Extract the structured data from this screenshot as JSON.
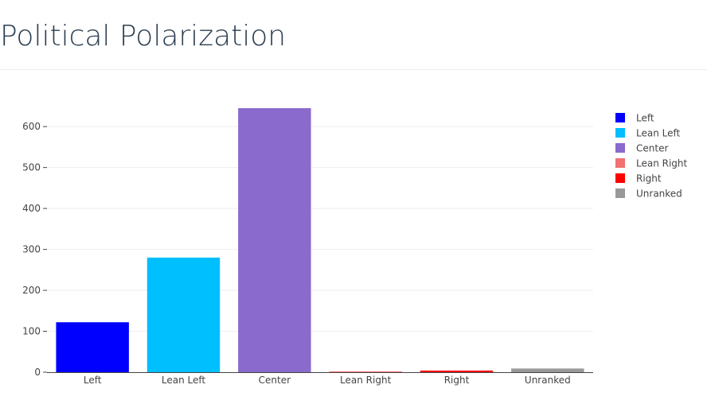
{
  "page": {
    "title": "Political Polarization"
  },
  "chart_data": {
    "type": "bar",
    "title": "",
    "xlabel": "",
    "ylabel": "",
    "categories": [
      "Left",
      "Lean Left",
      "Center",
      "Lean Right",
      "Right",
      "Unranked"
    ],
    "values": [
      122,
      280,
      645,
      1,
      4,
      9
    ],
    "colors": [
      "#0000ff",
      "#00bfff",
      "#8a6acd",
      "#f27171",
      "#ff0000",
      "#999999"
    ],
    "ylim": [
      0,
      680
    ],
    "yticks": [
      0,
      100,
      200,
      300,
      400,
      500,
      600
    ],
    "grid": true,
    "legend": {
      "position": "right",
      "entries": [
        "Left",
        "Lean Left",
        "Center",
        "Lean Right",
        "Right",
        "Unranked"
      ]
    }
  }
}
